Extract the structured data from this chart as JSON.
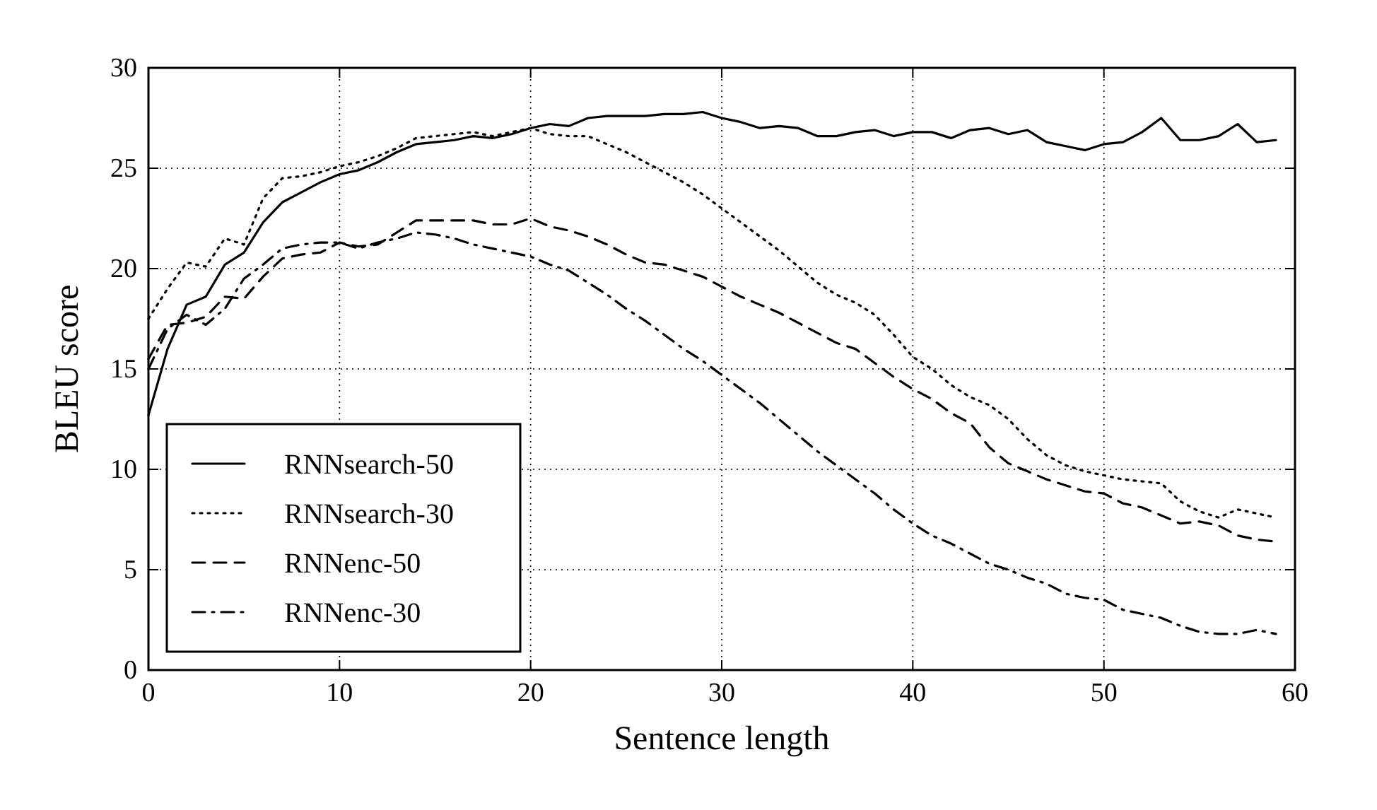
{
  "chart_data": {
    "type": "line",
    "xlabel": "Sentence length",
    "ylabel": "BLEU score",
    "x": [
      0,
      1,
      2,
      3,
      4,
      5,
      6,
      7,
      8,
      9,
      10,
      11,
      12,
      13,
      14,
      15,
      16,
      17,
      18,
      19,
      20,
      21,
      22,
      23,
      24,
      25,
      26,
      27,
      28,
      29,
      30,
      31,
      32,
      33,
      34,
      35,
      36,
      37,
      38,
      39,
      40,
      41,
      42,
      43,
      44,
      45,
      46,
      47,
      48,
      49,
      50,
      51,
      52,
      53,
      54,
      55,
      56,
      57,
      58,
      59
    ],
    "xlim": [
      0,
      60
    ],
    "xticks": [
      0,
      10,
      20,
      30,
      40,
      50,
      60
    ],
    "ylim": [
      0,
      30
    ],
    "yticks": [
      0,
      5,
      10,
      15,
      20,
      25,
      30
    ],
    "grid": true,
    "legend": "bottom left",
    "marker": "none",
    "series": [
      {
        "name": "RNNsearch-50",
        "color": "#000000",
        "line_style": "solid",
        "values": [
          12.7,
          16,
          18.2,
          18.6,
          20.2,
          20.8,
          22.3,
          23.3,
          23.8,
          24.3,
          24.7,
          24.9,
          25.3,
          25.8,
          26.2,
          26.3,
          26.4,
          26.6,
          26.5,
          26.7,
          27.0,
          27.2,
          27.1,
          27.5,
          27.6,
          27.6,
          27.6,
          27.7,
          27.7,
          27.8,
          27.5,
          27.3,
          27.0,
          27.1,
          27.0,
          26.6,
          26.6,
          26.8,
          26.9,
          26.6,
          26.8,
          26.8,
          26.5,
          26.9,
          27.0,
          26.7,
          26.9,
          26.3,
          26.1,
          25.9,
          26.2,
          26.3,
          26.8,
          27.5,
          26.4,
          26.4,
          26.6,
          27.2,
          26.3,
          26.4
        ]
      },
      {
        "name": "RNNsearch-30",
        "color": "#000000",
        "line_style": "dotted",
        "values": [
          17.5,
          19,
          20.3,
          20.1,
          21.5,
          21.2,
          23.5,
          24.5,
          24.6,
          24.8,
          25.1,
          25.3,
          25.6,
          26.0,
          26.5,
          26.6,
          26.7,
          26.8,
          26.6,
          26.8,
          27.0,
          26.7,
          26.6,
          26.6,
          26.2,
          25.8,
          25.3,
          24.8,
          24.3,
          23.7,
          23.0,
          22.3,
          21.6,
          20.9,
          20.1,
          19.3,
          18.7,
          18.3,
          17.7,
          16.7,
          15.6,
          15.0,
          14.2,
          13.6,
          13.2,
          12.5,
          11.5,
          10.7,
          10.2,
          9.9,
          9.7,
          9.5,
          9.4,
          9.3,
          8.4,
          7.9,
          7.6,
          8.0,
          7.8,
          7.6
        ]
      },
      {
        "name": "RNNenc-50",
        "color": "#000000",
        "line_style": "dashed",
        "values": [
          15.5,
          17.2,
          17.3,
          17.6,
          18.6,
          18.5,
          19.6,
          20.5,
          20.7,
          20.8,
          21.3,
          21.1,
          21.2,
          21.8,
          22.4,
          22.4,
          22.4,
          22.4,
          22.2,
          22.2,
          22.5,
          22.1,
          21.9,
          21.6,
          21.2,
          20.7,
          20.3,
          20.2,
          19.9,
          19.6,
          19.1,
          18.6,
          18.2,
          17.8,
          17.3,
          16.8,
          16.3,
          16.0,
          15.3,
          14.6,
          14.0,
          13.5,
          12.8,
          12.3,
          11.1,
          10.3,
          9.9,
          9.5,
          9.2,
          8.9,
          8.8,
          8.3,
          8.1,
          7.7,
          7.3,
          7.4,
          7.2,
          6.7,
          6.5,
          6.4
        ]
      },
      {
        "name": "RNNenc-30",
        "color": "#000000",
        "line_style": "dashdot",
        "values": [
          15,
          17,
          17.7,
          17.2,
          18,
          19.5,
          20.2,
          21.0,
          21.2,
          21.3,
          21.3,
          21.0,
          21.3,
          21.5,
          21.8,
          21.7,
          21.5,
          21.2,
          21.0,
          20.8,
          20.6,
          20.2,
          19.9,
          19.3,
          18.7,
          18.0,
          17.4,
          16.7,
          16.0,
          15.4,
          14.7,
          14.0,
          13.3,
          12.5,
          11.7,
          10.9,
          10.2,
          9.5,
          8.8,
          8.0,
          7.3,
          6.7,
          6.3,
          5.8,
          5.3,
          5.0,
          4.6,
          4.3,
          3.8,
          3.6,
          3.5,
          3.0,
          2.8,
          2.6,
          2.2,
          1.9,
          1.8,
          1.8,
          2.0,
          1.8
        ]
      }
    ]
  }
}
